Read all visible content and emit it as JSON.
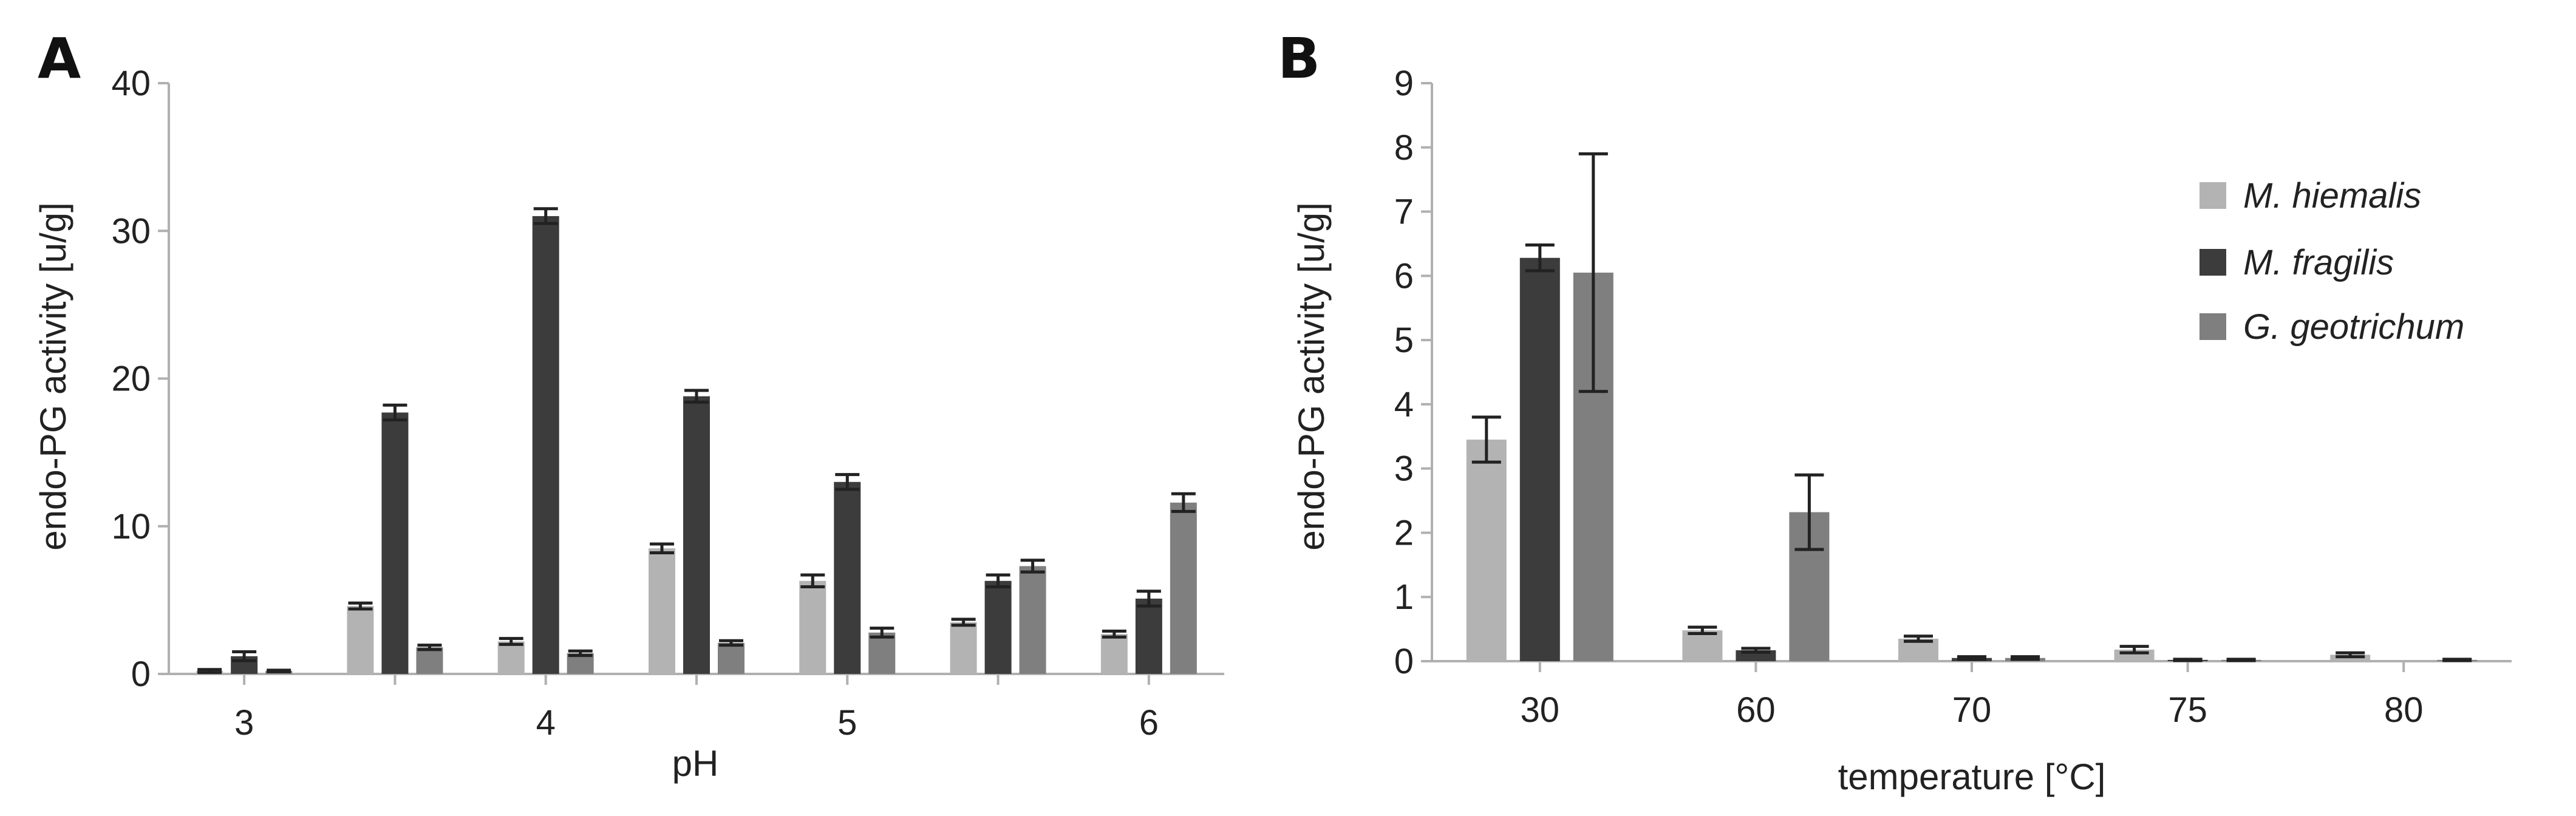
{
  "chart_data": [
    {
      "type": "bar",
      "panel_label": "A",
      "x_ticks": [
        "3",
        "4",
        "5",
        "6"
      ],
      "categories": [
        "3",
        "3.5",
        "4",
        "4.5",
        "5",
        "5.5",
        "6"
      ],
      "xlabel": "pH",
      "ylabel": "endo-PG activity [u/g]",
      "ylim": [
        0,
        40
      ],
      "y_ticks": [
        0,
        10,
        20,
        30,
        40
      ],
      "grid": false,
      "series": [
        {
          "values": [
            0.2,
            4.6,
            2.2,
            8.5,
            6.3,
            3.5,
            2.7
          ],
          "errors": [
            0.1,
            0.2,
            0.2,
            0.3,
            0.4,
            0.2,
            0.2
          ]
        },
        {
          "values": [
            1.2,
            17.7,
            31.0,
            18.8,
            13.0,
            6.3,
            5.1
          ],
          "errors": [
            0.3,
            0.5,
            0.5,
            0.4,
            0.5,
            0.4,
            0.5
          ]
        },
        {
          "values": [
            0.2,
            1.8,
            1.4,
            2.1,
            2.8,
            7.3,
            11.6
          ],
          "errors": [
            0.05,
            0.15,
            0.15,
            0.15,
            0.3,
            0.4,
            0.6
          ]
        }
      ]
    },
    {
      "type": "bar",
      "panel_label": "B",
      "categories": [
        "30",
        "60",
        "70",
        "75",
        "80"
      ],
      "xlabel": "temperature [°C]",
      "ylabel": "endo-PG activity [u/g]",
      "ylim": [
        0,
        9
      ],
      "y_ticks": [
        0,
        1,
        2,
        3,
        4,
        5,
        6,
        7,
        8,
        9
      ],
      "grid": false,
      "legend_position": "right",
      "series": [
        {
          "name": "M. hiemalis",
          "values": [
            3.45,
            0.48,
            0.35,
            0.18,
            0.1
          ],
          "errors": [
            0.35,
            0.05,
            0.04,
            0.05,
            0.03
          ]
        },
        {
          "name": "M. fragilis",
          "values": [
            6.28,
            0.17,
            0.05,
            0.02,
            0.0
          ],
          "errors": [
            0.2,
            0.03,
            0.02,
            0.01,
            0.0
          ]
        },
        {
          "name": "G. geotrichum",
          "values": [
            6.05,
            2.32,
            0.05,
            0.02,
            0.02
          ],
          "errors": [
            1.85,
            0.58,
            0.02,
            0.01,
            0.01
          ]
        }
      ]
    }
  ],
  "colors": {
    "series": [
      "#b3b3b3",
      "#3c3c3c",
      "#7f7f7f"
    ],
    "axis": "#b0b0b0",
    "error_bar": "#222222"
  }
}
